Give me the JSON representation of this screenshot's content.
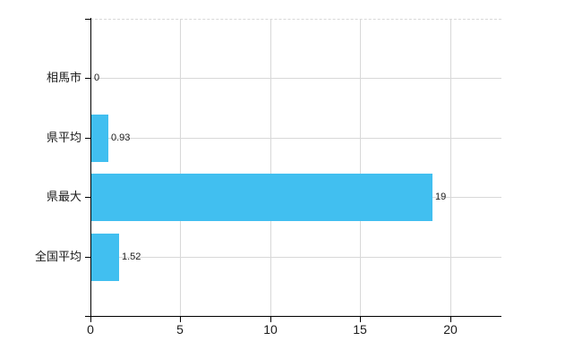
{
  "page": {
    "background": "#ffffff"
  },
  "chart_data": {
    "type": "bar",
    "orientation": "horizontal",
    "title": "",
    "categories": [
      "相馬市",
      "県平均",
      "県最大",
      "全国平均"
    ],
    "values": [
      0,
      0.93,
      19,
      1.52
    ],
    "value_labels": [
      "0",
      "0.93",
      "19",
      "1.52"
    ],
    "x_ticks": [
      0,
      5,
      10,
      15,
      20
    ],
    "x_tick_labels": [
      "0",
      "5",
      "10",
      "15",
      "20"
    ],
    "xlim": [
      0,
      22.9
    ],
    "grid": true,
    "legend": false,
    "bar_color": "#41BFF0",
    "grid_color": "#d8d8d8",
    "axis_color": "#000000",
    "label_color": "#1a1a1a"
  }
}
